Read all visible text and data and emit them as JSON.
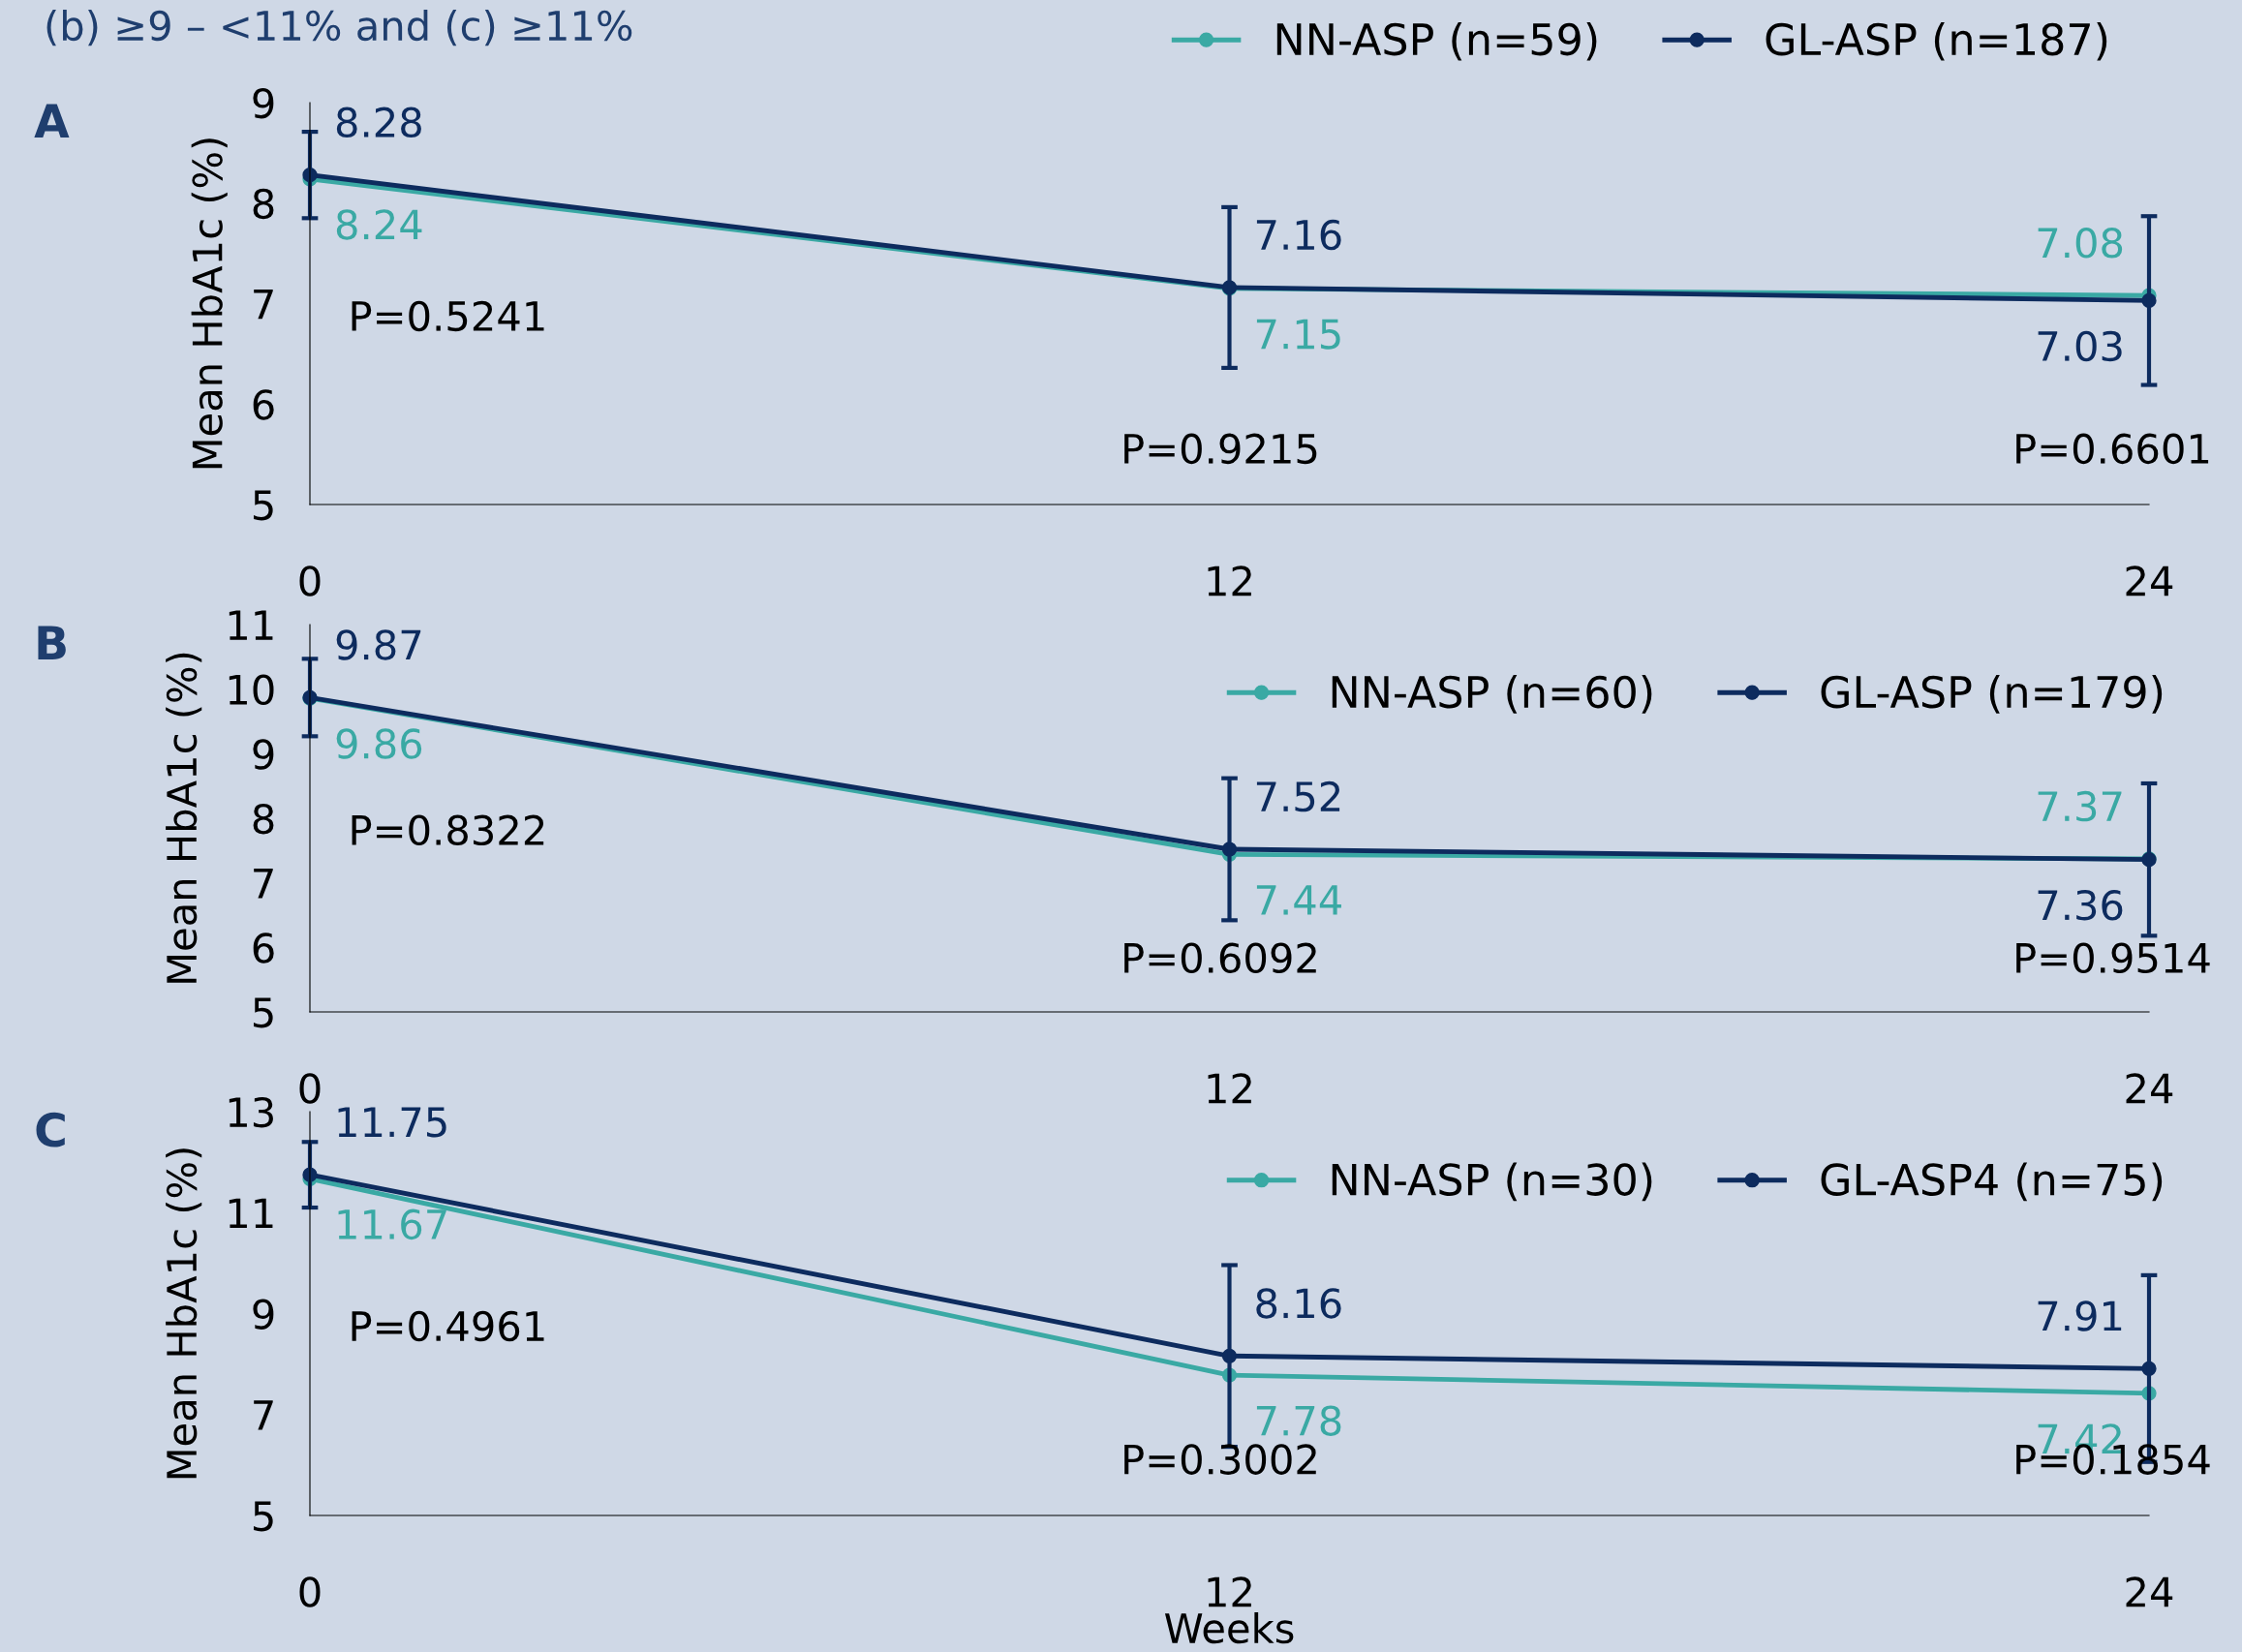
{
  "chart_data": [
    {
      "type": "line",
      "title": "A",
      "ylabel": "Mean HbA1c (%)",
      "x": [
        0,
        12,
        24
      ],
      "xlim": [
        0,
        24
      ],
      "xticks": [
        0,
        12,
        24
      ],
      "ylim": [
        5,
        9
      ],
      "yticks": [
        5,
        6,
        7,
        8,
        9
      ],
      "legend": "top",
      "marker": "circle",
      "line_style": "solid",
      "grid": false,
      "data_labels": true,
      "subtitle": "(b) ≥9 – <11% and (c) ≥11%",
      "annotations": [
        "P=0.5241",
        "P=0.9215",
        "P=0.6601"
      ],
      "series": [
        {
          "name": "NN-ASP (n=59)",
          "color": "#3aa9a4",
          "values": [
            8.24,
            7.15,
            7.08
          ]
        },
        {
          "name": "GL-ASP (n=187)",
          "color": "#0d2b5e",
          "values": [
            8.28,
            7.16,
            7.03
          ],
          "errors": [
            0.43,
            0.8,
            0.84
          ]
        }
      ]
    },
    {
      "type": "line",
      "title": "B",
      "ylabel": "Mean HbA1c (%)",
      "x": [
        0,
        12,
        24
      ],
      "xlim": [
        0,
        24
      ],
      "xticks": [
        0,
        12,
        24
      ],
      "ylim": [
        5,
        11
      ],
      "yticks": [
        5,
        6,
        7,
        8,
        9,
        10,
        11
      ],
      "legend": "top right",
      "marker": "circle",
      "line_style": "solid",
      "grid": false,
      "data_labels": true,
      "annotations": [
        "P=0.8322",
        "P=0.6092",
        "P=0.9514"
      ],
      "series": [
        {
          "name": "NN-ASP (n=60)",
          "color": "#3aa9a4",
          "values": [
            9.86,
            7.44,
            7.37
          ]
        },
        {
          "name": "GL-ASP (n=179)",
          "color": "#0d2b5e",
          "values": [
            9.87,
            7.52,
            7.36
          ],
          "errors": [
            0.6,
            1.1,
            1.18
          ]
        }
      ]
    },
    {
      "type": "line",
      "title": "C",
      "ylabel": "Mean HbA1c (%)",
      "xlabel": "Weeks",
      "x": [
        0,
        12,
        24
      ],
      "xlim": [
        0,
        24
      ],
      "xticks": [
        0,
        12,
        24
      ],
      "ylim": [
        5,
        13
      ],
      "yticks": [
        5,
        7,
        9,
        11,
        13
      ],
      "legend": "top right",
      "marker": "circle",
      "line_style": "solid",
      "grid": false,
      "data_labels": true,
      "annotations": [
        "P=0.4961",
        "P=0.3002",
        "P=0.1854"
      ],
      "series": [
        {
          "name": "NN-ASP (n=30)",
          "color": "#3aa9a4",
          "values": [
            11.67,
            7.78,
            7.42
          ]
        },
        {
          "name": "GL-ASP4 (n=75)",
          "color": "#0d2b5e",
          "values": [
            11.75,
            8.16,
            7.91
          ],
          "errors": [
            0.65,
            1.8,
            1.85
          ]
        }
      ]
    }
  ]
}
